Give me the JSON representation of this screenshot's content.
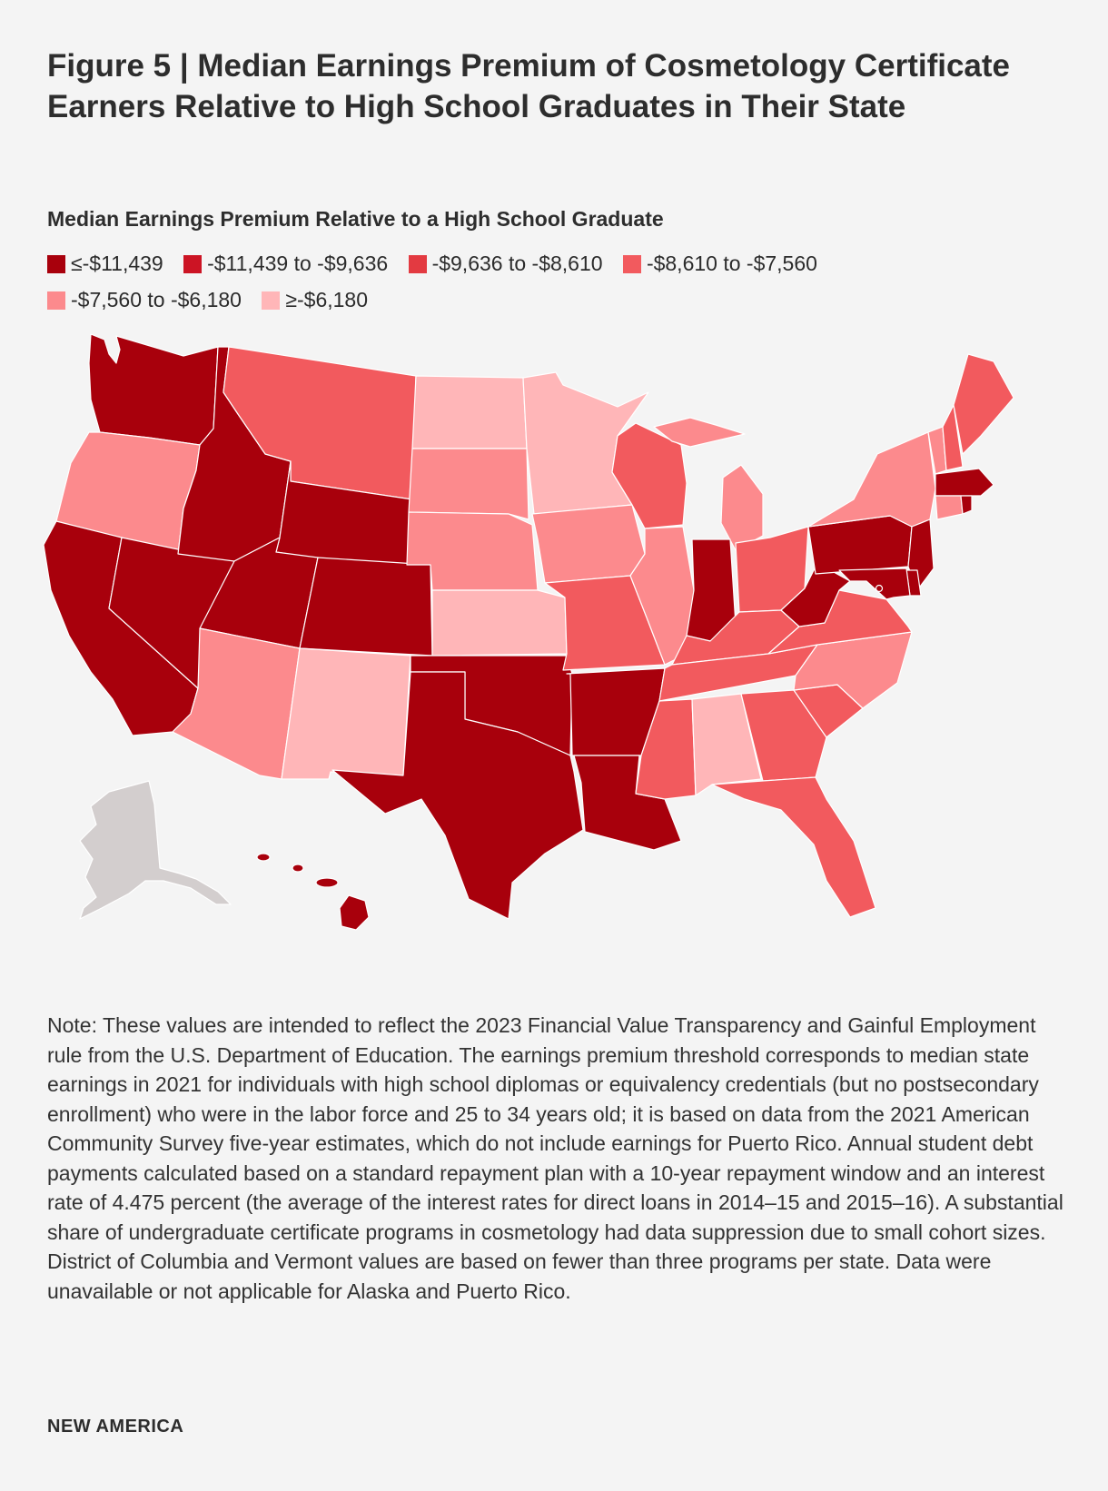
{
  "title": "Figure 5 | Median Earnings Premium of Cosmetology Certificate Earners Relative to High School Graduates in Their State",
  "legend": {
    "title": "Median Earnings Premium Relative to a High School Graduate",
    "items": [
      {
        "label": "≤-$11,439",
        "color": "#a8000c"
      },
      {
        "label": "-$11,439 to -$9,636",
        "color": "#cc1424"
      },
      {
        "label": "-$9,636 to -$8,610",
        "color": "#e33a41"
      },
      {
        "label": "-$8,610 to -$7,560",
        "color": "#f25a5e"
      },
      {
        "label": "-$7,560 to -$6,180",
        "color": "#fc8a8d"
      },
      {
        "label": "≥-$6,180",
        "color": "#ffb6b8"
      }
    ],
    "no_data_color": "#d3cece"
  },
  "note": "Note: These values are intended to reflect the 2023 Financial Value Transparency and Gainful Employment rule from the U.S. Department of Education. The earnings premium threshold corresponds to median state earnings in 2021 for individuals with high school diplomas or equivalency credentials (but no postsecondary enrollment) who were in the labor force and 25 to 34 years old; it is based on data from the 2021 American Community Survey five-year estimates, which do not include earnings for Puerto Rico. Annual student debt payments calculated based on a standard repayment plan with a 10-year repayment window and an interest rate of 4.475 percent (the average of the interest rates for direct loans in 2014–15 and 2015–16). A substantial share of undergraduate certificate programs in cosmetology had data suppression due to small cohort sizes. District of Columbia and Vermont values are based on fewer than three programs per state. Data were unavailable or not applicable for Alaska and Puerto Rico.",
  "brand": "NEW AMERICA",
  "states": {
    "WA": 0,
    "OR": 4,
    "CA": 0,
    "NV": 0,
    "ID": 0,
    "MT": 3,
    "WY": 0,
    "UT": 0,
    "CO": 0,
    "AZ": 4,
    "NM": 5,
    "ND": 5,
    "SD": 4,
    "NE": 4,
    "KS": 5,
    "OK": 0,
    "TX": 0,
    "MN": 5,
    "IA": 4,
    "MO": 3,
    "AR": 0,
    "LA": 0,
    "WI": 3,
    "IL": 4,
    "MI": 4,
    "IN": 0,
    "OH": 3,
    "KY": 3,
    "TN": 3,
    "MS": 3,
    "AL": 5,
    "GA": 3,
    "FL": 3,
    "SC": 3,
    "NC": 4,
    "VA": 3,
    "WV": 0,
    "PA": 0,
    "NY": 4,
    "VT": 4,
    "NH": 3,
    "ME": 3,
    "MA": 0,
    "RI": 0,
    "CT": 4,
    "NJ": 0,
    "DE": 0,
    "MD": 0,
    "DC": 0,
    "HI": 0,
    "AK": -1
  }
}
